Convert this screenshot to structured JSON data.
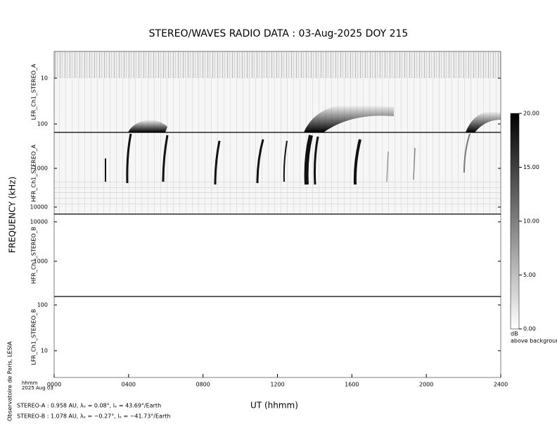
{
  "chart_data": {
    "type": "spectrogram",
    "title": "STEREO/WAVES  RADIO  DATA : 03-Aug-2025  DOY 215",
    "xlabel": "UT (hhmm)",
    "ylabel": "FREQUENCY (kHz)",
    "x_unit_label": "hhmm",
    "date_label": "2025 Aug 03",
    "xlim": [
      0,
      2400
    ],
    "xticks": [
      {
        "value": 0,
        "label": "0000"
      },
      {
        "value": 400,
        "label": "0400"
      },
      {
        "value": 800,
        "label": "0800"
      },
      {
        "value": 1200,
        "label": "1200"
      },
      {
        "value": 1600,
        "label": "1600"
      },
      {
        "value": 2000,
        "label": "2000"
      },
      {
        "value": 2400,
        "label": "2400"
      }
    ],
    "log_scale": true,
    "panels": [
      {
        "name": "LFR_Ch1_STEREO_A",
        "ylim": [
          2.6,
          153
        ],
        "yticks": [
          10,
          100
        ]
      },
      {
        "name": "HFR_Ch1_STEREO_A",
        "ylim": [
          118,
          15200
        ],
        "yticks": [
          1000,
          10000
        ]
      },
      {
        "name": "HFR_Ch1_STEREO_B",
        "ylim": [
          15700,
          128
        ],
        "yticks": [
          10000,
          1000
        ]
      },
      {
        "name": "LFR_Ch1_STEREO_B",
        "ylim": [
          153,
          2.6
        ],
        "yticks": [
          100,
          10
        ]
      }
    ],
    "colorbar": {
      "label": "dB",
      "sublabel": "above background",
      "lim": [
        0,
        20
      ],
      "ticks": [
        {
          "value": 0,
          "label": "0.00"
        },
        {
          "value": 5,
          "label": "5.00"
        },
        {
          "value": 10,
          "label": "10.00"
        },
        {
          "value": 15,
          "label": "15.00"
        },
        {
          "value": 20,
          "label": "20.00"
        }
      ]
    },
    "footer": [
      "STEREO-A : 0.958 AU, λₑ = 0.08°, lₑ = 43.69°/Earth",
      "STEREO-B : 1.078 AU, λₑ = −0.27°, lₑ = −41.73°/Earth"
    ],
    "credit": "Observatoire de Paris, LESIA"
  }
}
